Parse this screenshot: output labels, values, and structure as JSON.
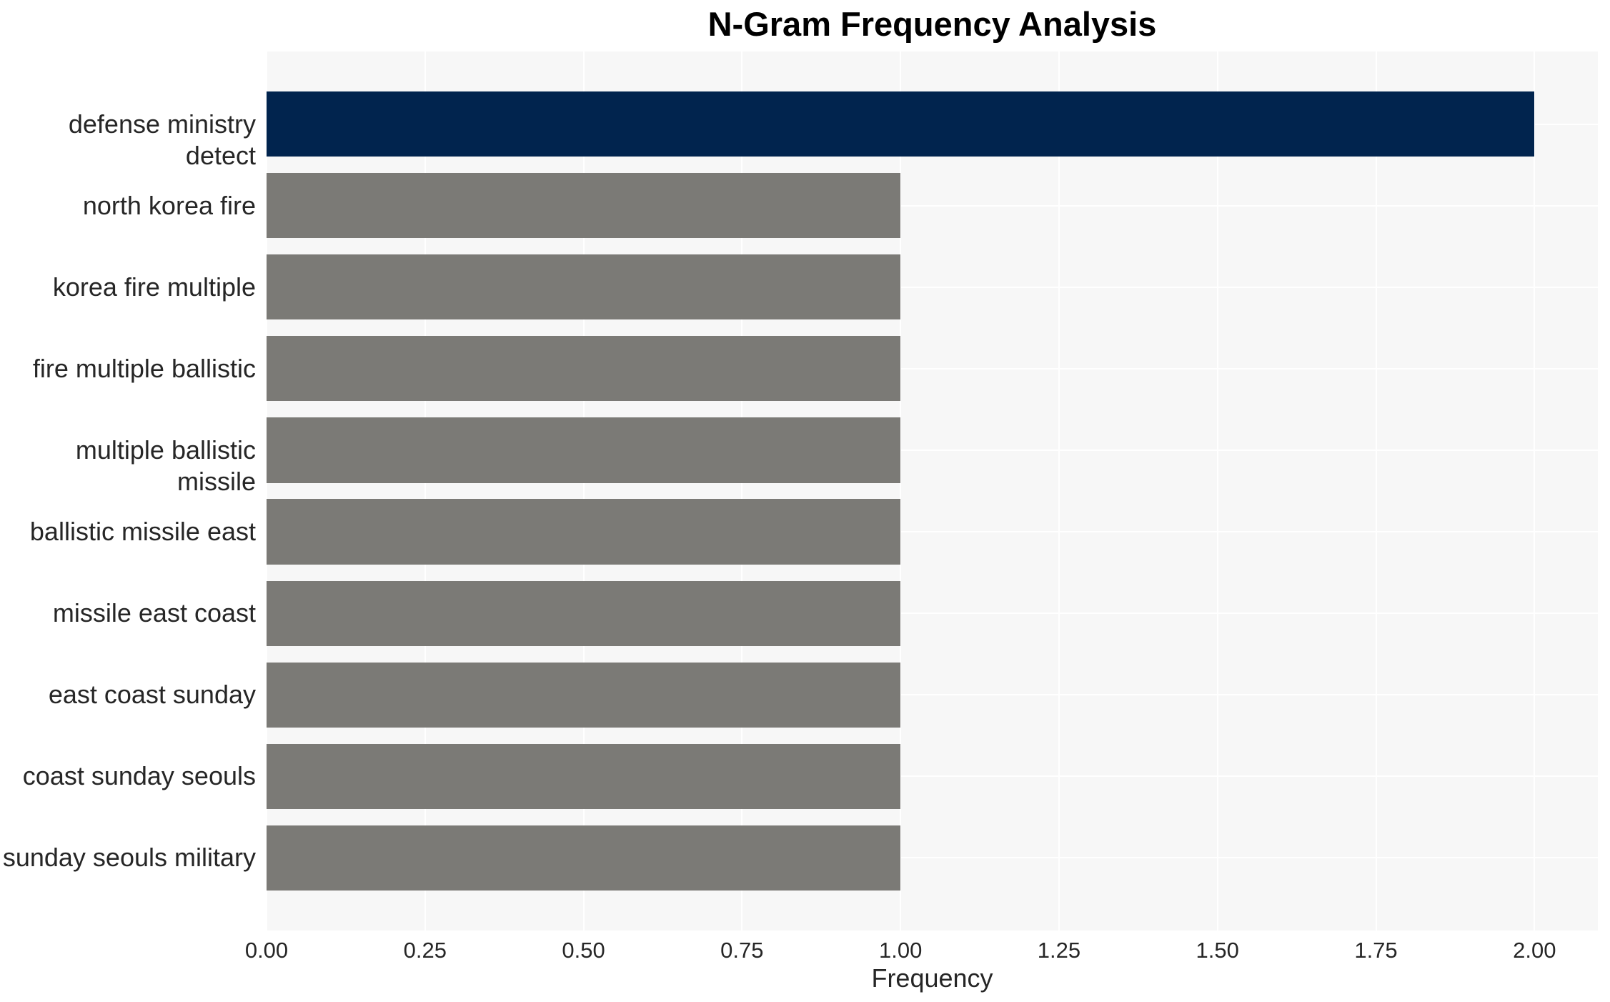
{
  "chart_data": {
    "type": "bar",
    "orientation": "horizontal",
    "title": "N-Gram Frequency Analysis",
    "xlabel": "Frequency",
    "ylabel": "",
    "categories": [
      "defense ministry detect",
      "north korea fire",
      "korea fire multiple",
      "fire multiple ballistic",
      "multiple ballistic missile",
      "ballistic missile east",
      "missile east coast",
      "east coast sunday",
      "coast sunday seouls",
      "sunday seouls military"
    ],
    "values": [
      2,
      1,
      1,
      1,
      1,
      1,
      1,
      1,
      1,
      1
    ],
    "xlim": [
      0,
      2.1
    ],
    "xticks": [
      "0.00",
      "0.25",
      "0.50",
      "0.75",
      "1.00",
      "1.25",
      "1.50",
      "1.75",
      "2.00"
    ],
    "xtick_values": [
      0,
      0.25,
      0.5,
      0.75,
      1.0,
      1.25,
      1.5,
      1.75,
      2.0
    ],
    "grid": true,
    "legend": false,
    "bar_colors": [
      "#01244e",
      "#7b7a76",
      "#7b7a76",
      "#7b7a76",
      "#7b7a76",
      "#7b7a76",
      "#7b7a76",
      "#7b7a76",
      "#7b7a76",
      "#7b7a76"
    ],
    "colors": {
      "highlight_bar": "#01244e",
      "default_bar": "#7b7a76",
      "plot_background": "#f7f7f7",
      "figure_background": "#ffffff",
      "gridline": "#ffffff",
      "tick_text": "#262626",
      "label_text": "#262626",
      "title_text": "#000000"
    }
  }
}
